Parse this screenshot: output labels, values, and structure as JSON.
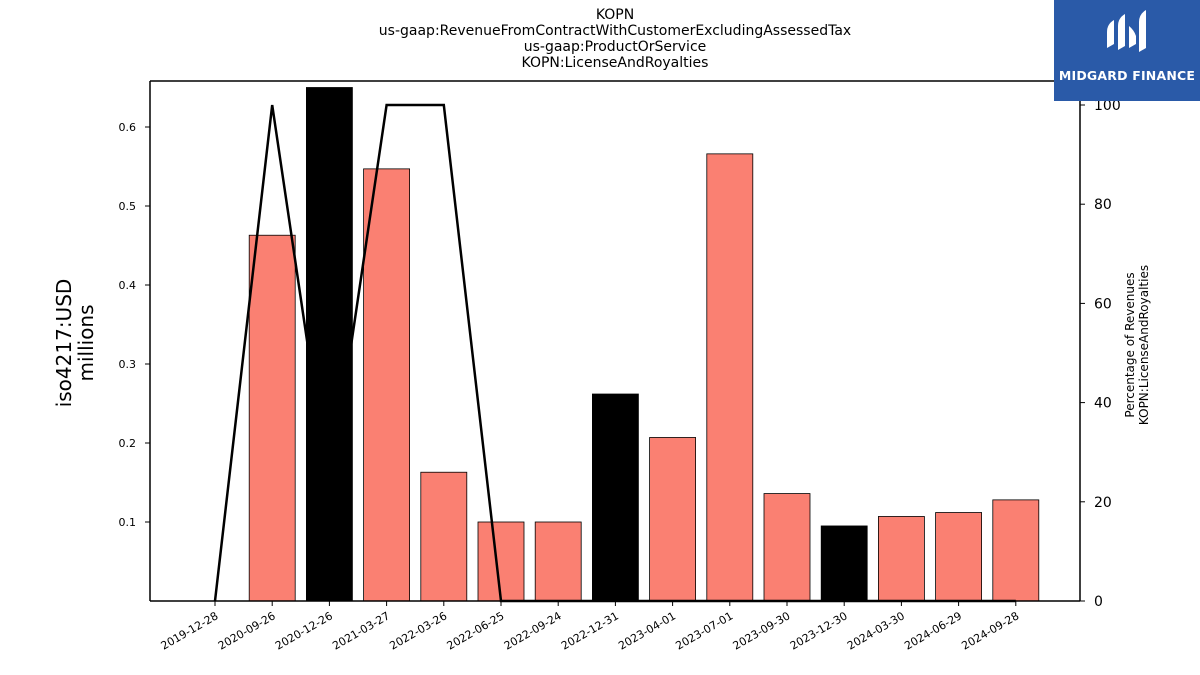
{
  "chart_data": {
    "type": "bar",
    "title_lines": [
      "KOPN",
      "us-gaap:RevenueFromContractWithCustomerExcludingAssessedTax",
      "us-gaap:ProductOrService",
      "KOPN:LicenseAndRoyalties"
    ],
    "ylabel": "iso4217:USD\nmillions",
    "y2label": "Percentage of Revenues\nKOPN:LicenseAndRoyalties",
    "categories": [
      "2019-12-28",
      "2020-09-26",
      "2020-12-26",
      "2021-03-27",
      "2022-03-26",
      "2022-06-25",
      "2022-09-24",
      "2022-12-31",
      "2023-04-01",
      "2023-07-01",
      "2023-09-30",
      "2023-12-30",
      "2024-03-30",
      "2024-06-29",
      "2024-09-28"
    ],
    "series": [
      {
        "values": [
          null,
          0.463,
          0.65,
          0.547,
          0.163,
          0.1,
          0.1,
          0.262,
          0.207,
          0.566,
          0.136,
          0.095,
          0.107,
          0.112,
          0.128
        ],
        "bar_colors": [
          "#fa8072",
          "#fa8072",
          "#000000",
          "#fa8072",
          "#fa8072",
          "#fa8072",
          "#fa8072",
          "#000000",
          "#fa8072",
          "#fa8072",
          "#fa8072",
          "#000000",
          "#fa8072",
          "#fa8072",
          "#fa8072"
        ]
      },
      {
        "axis": "right",
        "values": [
          0,
          100,
          22,
          100,
          100,
          0,
          0,
          0,
          0,
          0,
          0,
          0,
          0,
          0,
          0
        ],
        "color": "#000000"
      }
    ],
    "yticks": [
      0.1,
      0.2,
      0.3,
      0.4,
      0.5,
      0.6
    ],
    "ylim": [
      0,
      0.65
    ],
    "y2ticks": [
      0,
      20,
      40,
      60,
      80,
      100
    ],
    "y2lim": [
      0,
      105
    ],
    "grid": false
  },
  "logo": {
    "text": "MIDGARD FINANCE",
    "color": "#2a5aa8"
  }
}
